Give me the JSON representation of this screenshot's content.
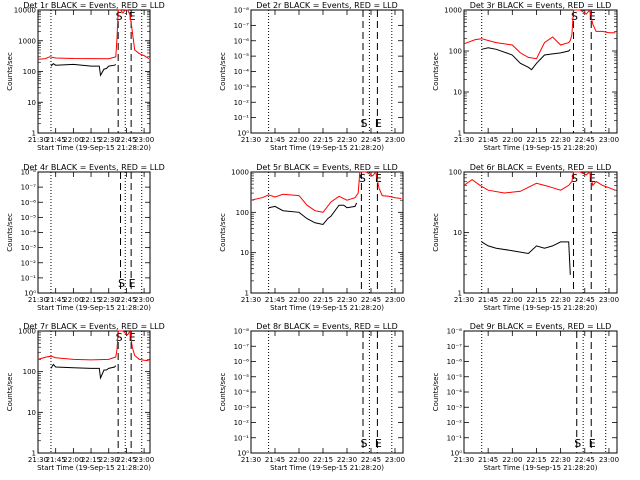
{
  "figure": {
    "xlabel": "Start Time (19-Sep-15 21:28:20)",
    "ylabel": "Counts/sec",
    "x_ticks": [
      "21:30",
      "21:45",
      "22:00",
      "22:15",
      "22:30",
      "22:45",
      "23:00"
    ],
    "legend_colors": {
      "events": "#000000",
      "lld": "#ff0000"
    }
  },
  "chart_data": [
    {
      "type": "line",
      "title": "Det 1r BLACK = Events, RED = LLD",
      "y_scale": "log",
      "ylim": [
        1,
        10000
      ],
      "y_ticks": [
        "1",
        "10",
        "100",
        "1000",
        "10000"
      ],
      "markers": [
        {
          "label": "S",
          "x": "22:38"
        },
        {
          "label": "E",
          "x": "22:49"
        }
      ],
      "dotted_lines": [
        "21:41",
        "22:44",
        "22:58"
      ],
      "series": [
        {
          "color": "#ff0000",
          "x": [
            "21:30",
            "21:36",
            "21:40",
            "21:45",
            "22:00",
            "22:15",
            "22:30",
            "22:36",
            "22:37",
            "22:38",
            "22:40",
            "22:42",
            "22:44",
            "22:46",
            "22:48",
            "22:50",
            "22:52",
            "22:56",
            "23:00",
            "23:04"
          ],
          "y": [
            250,
            260,
            300,
            275,
            265,
            262,
            260,
            300,
            1200,
            10000,
            10000,
            8000,
            10000,
            10000,
            7000,
            2000,
            500,
            380,
            330,
            260
          ]
        },
        {
          "color": "#000000",
          "x": [
            "21:41",
            "21:43",
            "21:45",
            "22:00",
            "22:15",
            "22:22",
            "22:23",
            "22:26",
            "22:28",
            "22:30",
            "22:35",
            "22:36"
          ],
          "y": [
            150,
            180,
            160,
            170,
            150,
            150,
            75,
            120,
            125,
            150,
            160,
            170
          ]
        }
      ]
    },
    {
      "type": "line",
      "title": "Det 2r BLACK = Events, RED = LLD",
      "y_scale": "log",
      "ylim": [
        1e-08,
        1
      ],
      "y_ticks": [
        "10⁰",
        "10⁻¹",
        "10⁻²",
        "10⁻³",
        "10⁻⁴",
        "10⁻⁵",
        "10⁻⁶",
        "10⁻⁷",
        "10⁻⁸"
      ],
      "markers": [
        {
          "label": "S",
          "x": "22:40"
        },
        {
          "label": "E",
          "x": "22:49"
        }
      ],
      "dotted_lines": [
        "21:41",
        "22:44",
        "22:58"
      ],
      "series": []
    },
    {
      "type": "line",
      "title": "Det 3r BLACK = Events, RED = LLD",
      "y_scale": "log",
      "ylim": [
        1,
        1000
      ],
      "y_ticks": [
        "1",
        "10",
        "100",
        "1000"
      ],
      "markers": [
        {
          "label": "S",
          "x": "22:38"
        },
        {
          "label": "E",
          "x": "22:49"
        }
      ],
      "dotted_lines": [
        "21:41",
        "22:44",
        "22:58"
      ],
      "series": [
        {
          "color": "#ff0000",
          "x": [
            "21:30",
            "21:37",
            "21:41",
            "21:45",
            "21:50",
            "22:00",
            "22:05",
            "22:10",
            "22:15",
            "22:20",
            "22:25",
            "22:30",
            "22:35",
            "22:36",
            "22:37",
            "22:38",
            "22:42",
            "22:46",
            "22:48",
            "22:50",
            "22:52",
            "22:56",
            "23:00",
            "23:04"
          ],
          "y": [
            150,
            190,
            200,
            180,
            160,
            140,
            90,
            70,
            65,
            160,
            220,
            140,
            160,
            180,
            250,
            1000,
            1000,
            800,
            1000,
            450,
            300,
            300,
            280,
            280
          ]
        },
        {
          "color": "#000000",
          "x": [
            "21:41",
            "21:45",
            "21:50",
            "22:00",
            "22:05",
            "22:10",
            "22:12",
            "22:15",
            "22:20",
            "22:25",
            "22:30",
            "22:35",
            "22:36"
          ],
          "y": [
            110,
            120,
            110,
            80,
            50,
            40,
            35,
            50,
            80,
            85,
            90,
            100,
            110
          ]
        }
      ]
    },
    {
      "type": "line",
      "title": "Det 4r BLACK = Events, RED = LLD",
      "y_scale": "log",
      "ylim": [
        1e-08,
        1
      ],
      "y_ticks": [
        "10⁰",
        "10⁻¹",
        "10⁻²",
        "10⁻³",
        "10⁻⁴",
        "10⁻⁵",
        "10⁻⁶",
        "10⁻⁷",
        "10⁻⁸"
      ],
      "markers": [
        {
          "label": "S",
          "x": "22:40"
        },
        {
          "label": "E",
          "x": "22:49"
        }
      ],
      "dotted_lines": [
        "21:41",
        "22:44",
        "22:58"
      ],
      "series": []
    },
    {
      "type": "line",
      "title": "Det 5r BLACK = Events, RED = LLD",
      "y_scale": "log",
      "ylim": [
        1,
        1000
      ],
      "y_ticks": [
        "1",
        "10",
        "100",
        "1000"
      ],
      "markers": [
        {
          "label": "S",
          "x": "22:39"
        },
        {
          "label": "E",
          "x": "22:49"
        }
      ],
      "dotted_lines": [
        "21:41",
        "22:44",
        "22:58"
      ],
      "series": [
        {
          "color": "#ff0000",
          "x": [
            "21:30",
            "21:37",
            "21:41",
            "21:45",
            "21:50",
            "22:00",
            "22:05",
            "22:10",
            "22:15",
            "22:20",
            "22:25",
            "22:30",
            "22:35",
            "22:37",
            "22:38",
            "22:42",
            "22:46",
            "22:48",
            "22:50",
            "22:52",
            "22:56",
            "23:00",
            "23:04"
          ],
          "y": [
            200,
            230,
            270,
            240,
            280,
            260,
            150,
            110,
            100,
            180,
            250,
            200,
            230,
            300,
            1000,
            1000,
            800,
            1000,
            400,
            260,
            250,
            230,
            220
          ]
        },
        {
          "color": "#000000",
          "x": [
            "21:41",
            "21:45",
            "21:50",
            "22:00",
            "22:05",
            "22:10",
            "22:15",
            "22:18",
            "22:20",
            "22:25",
            "22:28",
            "22:30",
            "22:35",
            "22:36"
          ],
          "y": [
            130,
            140,
            110,
            100,
            70,
            55,
            50,
            70,
            80,
            150,
            150,
            130,
            140,
            170
          ]
        }
      ]
    },
    {
      "type": "line",
      "title": "Det 6r BLACK = Events, RED = LLD",
      "y_scale": "log",
      "ylim": [
        1,
        100
      ],
      "y_ticks": [
        "1",
        "10",
        "100"
      ],
      "markers": [
        {
          "label": "S",
          "x": "22:38"
        },
        {
          "label": "E",
          "x": "22:49"
        }
      ],
      "dotted_lines": [
        "21:41",
        "22:44",
        "22:58"
      ],
      "series": [
        {
          "color": "#ff0000",
          "x": [
            "21:30",
            "21:35",
            "21:40",
            "21:45",
            "21:55",
            "22:05",
            "22:15",
            "22:20",
            "22:25",
            "22:30",
            "22:35",
            "22:37",
            "22:38",
            "22:42",
            "22:46",
            "22:48",
            "22:50",
            "22:52",
            "22:56",
            "23:00",
            "23:04"
          ],
          "y": [
            60,
            75,
            60,
            50,
            45,
            48,
            65,
            60,
            55,
            50,
            60,
            70,
            100,
            100,
            90,
            100,
            60,
            70,
            60,
            55,
            50
          ]
        },
        {
          "color": "#000000",
          "x": [
            "21:41",
            "21:45",
            "21:50",
            "22:00",
            "22:10",
            "22:15",
            "22:20",
            "22:25",
            "22:30",
            "22:35",
            "22:36"
          ],
          "y": [
            7,
            6,
            5.5,
            5,
            4.5,
            6,
            5.5,
            6,
            7,
            7,
            2
          ]
        }
      ]
    },
    {
      "type": "line",
      "title": "Det 7r BLACK = Events, RED = LLD",
      "y_scale": "log",
      "ylim": [
        1,
        1000
      ],
      "y_ticks": [
        "1",
        "10",
        "100",
        "1000"
      ],
      "markers": [
        {
          "label": "S",
          "x": "22:38"
        },
        {
          "label": "E",
          "x": "22:49"
        }
      ],
      "dotted_lines": [
        "21:41",
        "22:44",
        "22:58"
      ],
      "series": [
        {
          "color": "#ff0000",
          "x": [
            "21:30",
            "21:37",
            "21:41",
            "21:45",
            "22:00",
            "22:15",
            "22:30",
            "22:36",
            "22:37",
            "22:38",
            "22:42",
            "22:46",
            "22:48",
            "22:50",
            "22:52",
            "22:56",
            "23:00",
            "23:04"
          ],
          "y": [
            200,
            230,
            240,
            220,
            200,
            195,
            200,
            230,
            350,
            1000,
            1000,
            800,
            1000,
            400,
            250,
            200,
            190,
            185
          ]
        },
        {
          "color": "#000000",
          "x": [
            "21:41",
            "21:43",
            "21:45",
            "22:00",
            "22:15",
            "22:22",
            "22:23",
            "22:26",
            "22:28",
            "22:30",
            "22:35",
            "22:36"
          ],
          "y": [
            120,
            150,
            130,
            125,
            120,
            120,
            70,
            110,
            110,
            120,
            130,
            140
          ]
        }
      ]
    },
    {
      "type": "line",
      "title": "Det 8r BLACK = Events, RED = LLD",
      "y_scale": "log",
      "ylim": [
        1e-08,
        1
      ],
      "y_ticks": [
        "10⁰",
        "10⁻¹",
        "10⁻²",
        "10⁻³",
        "10⁻⁴",
        "10⁻⁵",
        "10⁻⁶",
        "10⁻⁷",
        "10⁻⁸"
      ],
      "markers": [
        {
          "label": "S",
          "x": "22:40"
        },
        {
          "label": "E",
          "x": "22:49"
        }
      ],
      "dotted_lines": [
        "21:41",
        "22:44",
        "22:58"
      ],
      "series": []
    },
    {
      "type": "line",
      "title": "Det 9r BLACK = Events, RED = LLD",
      "y_scale": "log",
      "ylim": [
        1e-08,
        1
      ],
      "y_ticks": [
        "10⁰",
        "10⁻¹",
        "10⁻²",
        "10⁻³",
        "10⁻⁴",
        "10⁻⁵",
        "10⁻⁶",
        "10⁻⁷",
        "10⁻⁸"
      ],
      "markers": [
        {
          "label": "S",
          "x": "22:40"
        },
        {
          "label": "E",
          "x": "22:49"
        }
      ],
      "dotted_lines": [
        "21:41",
        "22:44",
        "22:58"
      ],
      "series": []
    }
  ]
}
